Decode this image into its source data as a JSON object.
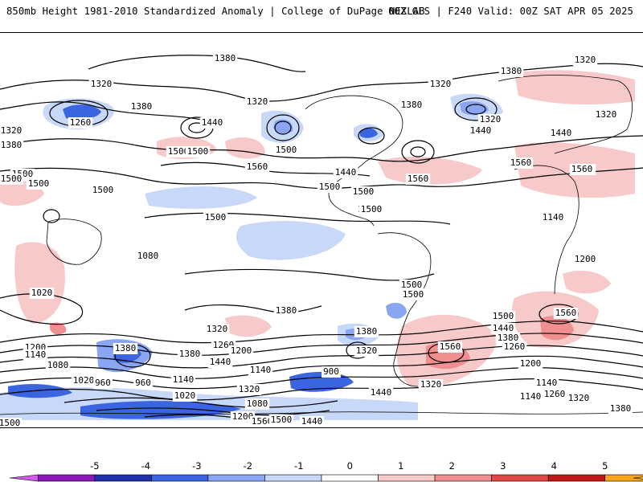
{
  "header": {
    "left": "850mb Height 1981-2010 Standardized Anomaly | College of DuPage NEXLAB",
    "right": "00Z GFS | F240 Valid: 00Z SAT APR 05 2025"
  },
  "map": {
    "contour_labels": [
      {
        "text": "1380"
      },
      {
        "text": "1320"
      },
      {
        "text": "1320"
      },
      {
        "text": "1380"
      },
      {
        "text": "1320"
      },
      {
        "text": "1260"
      },
      {
        "text": "1320"
      },
      {
        "text": "1380"
      },
      {
        "text": "1440"
      },
      {
        "text": "1500"
      },
      {
        "text": "1380"
      },
      {
        "text": "1320"
      },
      {
        "text": "1380"
      },
      {
        "text": "1320"
      },
      {
        "text": "1440"
      },
      {
        "text": "1500"
      },
      {
        "text": "1560"
      },
      {
        "text": "1500"
      },
      {
        "text": "1440"
      },
      {
        "text": "1500"
      },
      {
        "text": "1560"
      },
      {
        "text": "1500"
      },
      {
        "text": "1500"
      },
      {
        "text": "1500"
      },
      {
        "text": "1500"
      },
      {
        "text": "1500"
      },
      {
        "text": "1560"
      },
      {
        "text": "1440"
      },
      {
        "text": "1320"
      },
      {
        "text": "1260"
      },
      {
        "text": "1140"
      },
      {
        "text": "1200"
      },
      {
        "text": "1080"
      },
      {
        "text": "1020"
      },
      {
        "text": "1380"
      },
      {
        "text": "1320"
      },
      {
        "text": "1260"
      },
      {
        "text": "1200"
      },
      {
        "text": "1140"
      },
      {
        "text": "1080"
      },
      {
        "text": "1020"
      },
      {
        "text": "960"
      },
      {
        "text": "960"
      },
      {
        "text": "1140"
      },
      {
        "text": "1020"
      },
      {
        "text": "1080"
      },
      {
        "text": "1200"
      },
      {
        "text": "1560"
      },
      {
        "text": "1500"
      },
      {
        "text": "1440"
      },
      {
        "text": "1380"
      },
      {
        "text": "1380"
      },
      {
        "text": "1200"
      },
      {
        "text": "1140"
      },
      {
        "text": "900"
      },
      {
        "text": "1560"
      },
      {
        "text": "1320"
      },
      {
        "text": "1500"
      },
      {
        "text": "1500"
      },
      {
        "text": "1560"
      },
      {
        "text": "1500"
      },
      {
        "text": "1440"
      },
      {
        "text": "1380"
      },
      {
        "text": "1260"
      },
      {
        "text": "1200"
      },
      {
        "text": "1140"
      },
      {
        "text": "1140"
      },
      {
        "text": "1260"
      },
      {
        "text": "1320"
      },
      {
        "text": "1380"
      },
      {
        "text": "1500"
      },
      {
        "text": "1500"
      },
      {
        "text": "1560"
      },
      {
        "text": "1500"
      },
      {
        "text": "1440"
      },
      {
        "text": "1320"
      },
      {
        "text": "1380"
      },
      {
        "text": "1440"
      },
      {
        "text": "1320"
      },
      {
        "text": "1500"
      }
    ]
  },
  "legend": {
    "ticks": [
      "-5",
      "-4",
      "-3",
      "-2",
      "-1",
      "0",
      "1",
      "2",
      "3",
      "4",
      "5"
    ],
    "colors": [
      "#d35ae6",
      "#8c18b8",
      "#1f2fa8",
      "#3b64e0",
      "#8aa6f2",
      "#c8d8f8",
      "#ffffff",
      "#f8c9c9",
      "#f08f8f",
      "#e04848",
      "#c01818",
      "#f8a418",
      "#f0cf30"
    ]
  }
}
